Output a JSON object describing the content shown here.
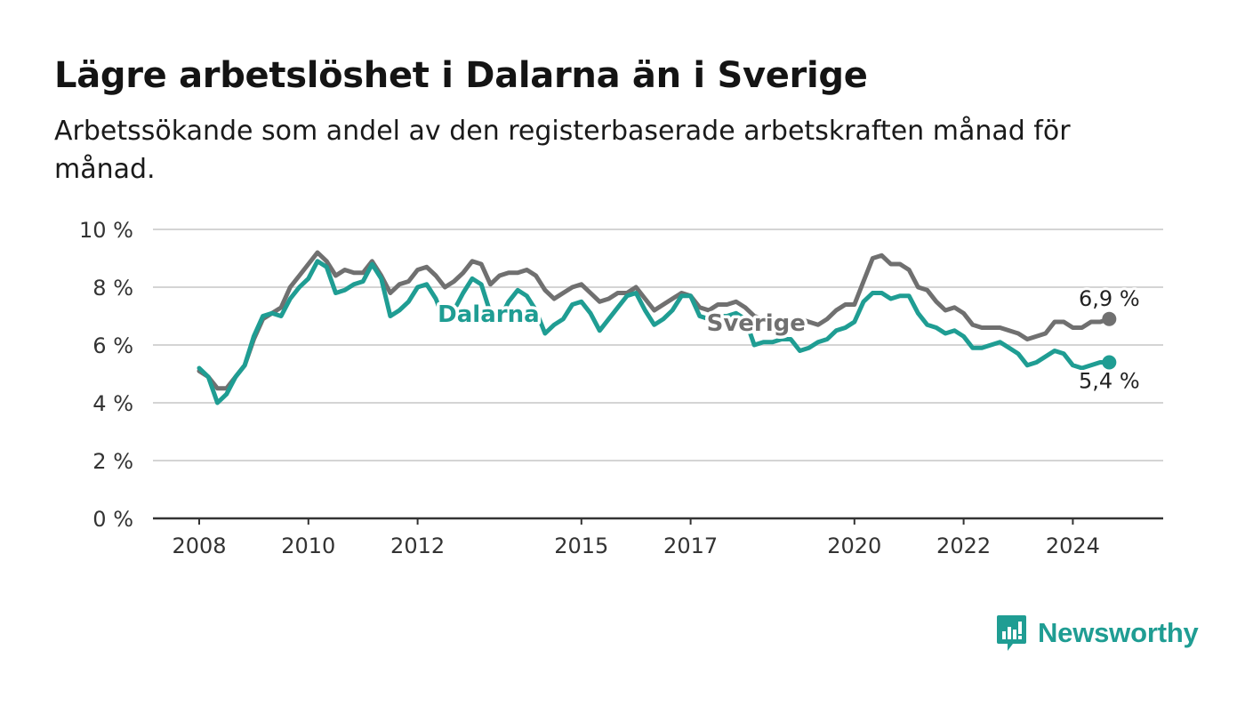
{
  "header": {
    "title": "Lägre arbetslöshet i Dalarna än i Sverige",
    "subtitle": "Arbetssökande som andel av den registerbaserade arbetskraften månad för månad."
  },
  "brand": {
    "name": "Newsworthy",
    "color": "#1f9d93"
  },
  "chart_data": {
    "type": "line",
    "yticks": [
      "0 %",
      "2 %",
      "4 %",
      "6 %",
      "8 %",
      "10 %"
    ],
    "ylim": [
      0,
      10
    ],
    "xticks": [
      {
        "year": 2008,
        "label": "2008"
      },
      {
        "year": 2010,
        "label": "2010"
      },
      {
        "year": 2012,
        "label": "2012"
      },
      {
        "year": 2015,
        "label": "2015"
      },
      {
        "year": 2017,
        "label": "2017"
      },
      {
        "year": 2020,
        "label": "2020"
      },
      {
        "year": 2022,
        "label": "2022"
      },
      {
        "year": 2024,
        "label": "2024"
      }
    ],
    "grid": true,
    "series": [
      {
        "name": "Sverige",
        "color": "#707070",
        "end_label": "6,9 %",
        "points": [
          [
            "2008-01",
            5.1
          ],
          [
            "2008-03",
            4.9
          ],
          [
            "2008-05",
            4.5
          ],
          [
            "2008-07",
            4.5
          ],
          [
            "2008-09",
            4.9
          ],
          [
            "2008-11",
            5.3
          ],
          [
            "2009-01",
            6.2
          ],
          [
            "2009-03",
            6.9
          ],
          [
            "2009-05",
            7.1
          ],
          [
            "2009-07",
            7.3
          ],
          [
            "2009-09",
            8.0
          ],
          [
            "2009-11",
            8.4
          ],
          [
            "2010-01",
            8.8
          ],
          [
            "2010-03",
            9.2
          ],
          [
            "2010-05",
            8.9
          ],
          [
            "2010-07",
            8.4
          ],
          [
            "2010-09",
            8.6
          ],
          [
            "2010-11",
            8.5
          ],
          [
            "2011-01",
            8.5
          ],
          [
            "2011-03",
            8.9
          ],
          [
            "2011-05",
            8.4
          ],
          [
            "2011-07",
            7.8
          ],
          [
            "2011-09",
            8.1
          ],
          [
            "2011-11",
            8.2
          ],
          [
            "2012-01",
            8.6
          ],
          [
            "2012-03",
            8.7
          ],
          [
            "2012-05",
            8.4
          ],
          [
            "2012-07",
            8.0
          ],
          [
            "2012-09",
            8.2
          ],
          [
            "2012-11",
            8.5
          ],
          [
            "2013-01",
            8.9
          ],
          [
            "2013-03",
            8.8
          ],
          [
            "2013-05",
            8.1
          ],
          [
            "2013-07",
            8.4
          ],
          [
            "2013-09",
            8.5
          ],
          [
            "2013-11",
            8.5
          ],
          [
            "2014-01",
            8.6
          ],
          [
            "2014-03",
            8.4
          ],
          [
            "2014-05",
            7.9
          ],
          [
            "2014-07",
            7.6
          ],
          [
            "2014-09",
            7.8
          ],
          [
            "2014-11",
            8.0
          ],
          [
            "2015-01",
            8.1
          ],
          [
            "2015-03",
            7.8
          ],
          [
            "2015-05",
            7.5
          ],
          [
            "2015-07",
            7.6
          ],
          [
            "2015-09",
            7.8
          ],
          [
            "2015-11",
            7.8
          ],
          [
            "2016-01",
            8.0
          ],
          [
            "2016-03",
            7.6
          ],
          [
            "2016-05",
            7.2
          ],
          [
            "2016-07",
            7.4
          ],
          [
            "2016-09",
            7.6
          ],
          [
            "2016-11",
            7.8
          ],
          [
            "2017-01",
            7.7
          ],
          [
            "2017-03",
            7.3
          ],
          [
            "2017-05",
            7.2
          ],
          [
            "2017-07",
            7.4
          ],
          [
            "2017-09",
            7.4
          ],
          [
            "2017-11",
            7.5
          ],
          [
            "2018-01",
            7.3
          ],
          [
            "2018-03",
            7.0
          ],
          [
            "2018-05",
            6.9
          ],
          [
            "2018-07",
            6.8
          ],
          [
            "2018-09",
            6.8
          ],
          [
            "2018-11",
            6.8
          ],
          [
            "2019-01",
            6.9
          ],
          [
            "2019-03",
            6.8
          ],
          [
            "2019-05",
            6.7
          ],
          [
            "2019-07",
            6.9
          ],
          [
            "2019-09",
            7.2
          ],
          [
            "2019-11",
            7.4
          ],
          [
            "2020-01",
            7.4
          ],
          [
            "2020-03",
            8.2
          ],
          [
            "2020-05",
            9.0
          ],
          [
            "2020-07",
            9.1
          ],
          [
            "2020-09",
            8.8
          ],
          [
            "2020-11",
            8.8
          ],
          [
            "2021-01",
            8.6
          ],
          [
            "2021-03",
            8.0
          ],
          [
            "2021-05",
            7.9
          ],
          [
            "2021-07",
            7.5
          ],
          [
            "2021-09",
            7.2
          ],
          [
            "2021-11",
            7.3
          ],
          [
            "2022-01",
            7.1
          ],
          [
            "2022-03",
            6.7
          ],
          [
            "2022-05",
            6.6
          ],
          [
            "2022-07",
            6.6
          ],
          [
            "2022-09",
            6.6
          ],
          [
            "2022-11",
            6.5
          ],
          [
            "2023-01",
            6.4
          ],
          [
            "2023-03",
            6.2
          ],
          [
            "2023-05",
            6.3
          ],
          [
            "2023-07",
            6.4
          ],
          [
            "2023-09",
            6.8
          ],
          [
            "2023-11",
            6.8
          ],
          [
            "2024-01",
            6.6
          ],
          [
            "2024-03",
            6.6
          ],
          [
            "2024-05",
            6.8
          ],
          [
            "2024-07",
            6.8
          ],
          [
            "2024-09",
            6.9
          ]
        ]
      },
      {
        "name": "Dalarna",
        "color": "#1f9d93",
        "end_label": "5,4 %",
        "points": [
          [
            "2008-01",
            5.2
          ],
          [
            "2008-03",
            4.9
          ],
          [
            "2008-05",
            4.0
          ],
          [
            "2008-07",
            4.3
          ],
          [
            "2008-09",
            4.9
          ],
          [
            "2008-11",
            5.3
          ],
          [
            "2009-01",
            6.3
          ],
          [
            "2009-03",
            7.0
          ],
          [
            "2009-05",
            7.1
          ],
          [
            "2009-07",
            7.0
          ],
          [
            "2009-09",
            7.6
          ],
          [
            "2009-11",
            8.0
          ],
          [
            "2010-01",
            8.3
          ],
          [
            "2010-03",
            8.9
          ],
          [
            "2010-05",
            8.7
          ],
          [
            "2010-07",
            7.8
          ],
          [
            "2010-09",
            7.9
          ],
          [
            "2010-11",
            8.1
          ],
          [
            "2011-01",
            8.2
          ],
          [
            "2011-03",
            8.8
          ],
          [
            "2011-05",
            8.3
          ],
          [
            "2011-07",
            7.0
          ],
          [
            "2011-09",
            7.2
          ],
          [
            "2011-11",
            7.5
          ],
          [
            "2012-01",
            8.0
          ],
          [
            "2012-03",
            8.1
          ],
          [
            "2012-05",
            7.6
          ],
          [
            "2012-07",
            6.8
          ],
          [
            "2012-09",
            7.2
          ],
          [
            "2012-11",
            7.8
          ],
          [
            "2013-01",
            8.3
          ],
          [
            "2013-03",
            8.1
          ],
          [
            "2013-05",
            7.1
          ],
          [
            "2013-07",
            6.9
          ],
          [
            "2013-09",
            7.5
          ],
          [
            "2013-11",
            7.9
          ],
          [
            "2014-01",
            7.7
          ],
          [
            "2014-03",
            7.2
          ],
          [
            "2014-05",
            6.4
          ],
          [
            "2014-07",
            6.7
          ],
          [
            "2014-09",
            6.9
          ],
          [
            "2014-11",
            7.4
          ],
          [
            "2015-01",
            7.5
          ],
          [
            "2015-03",
            7.1
          ],
          [
            "2015-05",
            6.5
          ],
          [
            "2015-07",
            6.9
          ],
          [
            "2015-09",
            7.3
          ],
          [
            "2015-11",
            7.7
          ],
          [
            "2016-01",
            7.8
          ],
          [
            "2016-03",
            7.2
          ],
          [
            "2016-05",
            6.7
          ],
          [
            "2016-07",
            6.9
          ],
          [
            "2016-09",
            7.2
          ],
          [
            "2016-11",
            7.7
          ],
          [
            "2017-01",
            7.7
          ],
          [
            "2017-03",
            7.0
          ],
          [
            "2017-05",
            6.9
          ],
          [
            "2017-07",
            7.0
          ],
          [
            "2017-09",
            7.0
          ],
          [
            "2017-11",
            7.1
          ],
          [
            "2018-01",
            6.9
          ],
          [
            "2018-03",
            6.0
          ],
          [
            "2018-05",
            6.1
          ],
          [
            "2018-07",
            6.1
          ],
          [
            "2018-09",
            6.2
          ],
          [
            "2018-11",
            6.2
          ],
          [
            "2019-01",
            5.8
          ],
          [
            "2019-03",
            5.9
          ],
          [
            "2019-05",
            6.1
          ],
          [
            "2019-07",
            6.2
          ],
          [
            "2019-09",
            6.5
          ],
          [
            "2019-11",
            6.6
          ],
          [
            "2020-01",
            6.8
          ],
          [
            "2020-03",
            7.5
          ],
          [
            "2020-05",
            7.8
          ],
          [
            "2020-07",
            7.8
          ],
          [
            "2020-09",
            7.6
          ],
          [
            "2020-11",
            7.7
          ],
          [
            "2021-01",
            7.7
          ],
          [
            "2021-03",
            7.1
          ],
          [
            "2021-05",
            6.7
          ],
          [
            "2021-07",
            6.6
          ],
          [
            "2021-09",
            6.4
          ],
          [
            "2021-11",
            6.5
          ],
          [
            "2022-01",
            6.3
          ],
          [
            "2022-03",
            5.9
          ],
          [
            "2022-05",
            5.9
          ],
          [
            "2022-07",
            6.0
          ],
          [
            "2022-09",
            6.1
          ],
          [
            "2022-11",
            5.9
          ],
          [
            "2023-01",
            5.7
          ],
          [
            "2023-03",
            5.3
          ],
          [
            "2023-05",
            5.4
          ],
          [
            "2023-07",
            5.6
          ],
          [
            "2023-09",
            5.8
          ],
          [
            "2023-11",
            5.7
          ],
          [
            "2024-01",
            5.3
          ],
          [
            "2024-03",
            5.2
          ],
          [
            "2024-05",
            5.3
          ],
          [
            "2024-07",
            5.4
          ],
          [
            "2024-09",
            5.4
          ]
        ]
      }
    ]
  }
}
